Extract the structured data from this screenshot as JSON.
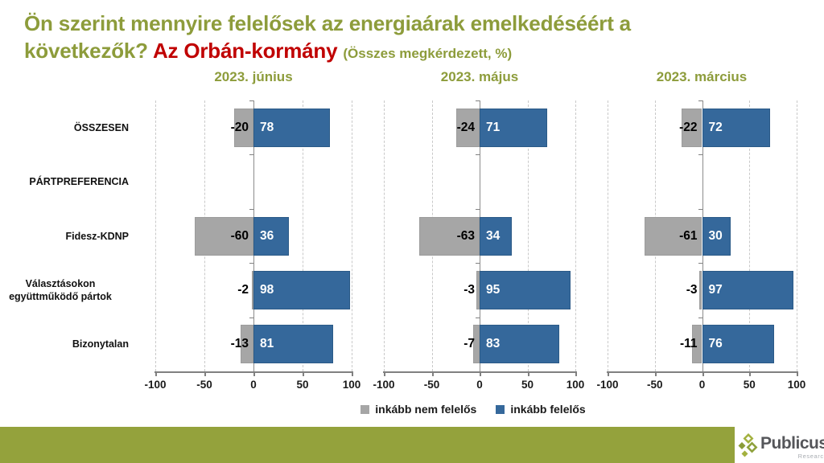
{
  "header": {
    "title_line1": "Ön szerint mennyire felelősek az energiaárak emelkedéséért a",
    "title_line2": "következők?",
    "title_highlight": "Az Orbán-kormány",
    "title_note": "(Összes megkérdezett, %)"
  },
  "chart_data": {
    "type": "bar",
    "orientation": "horizontal_diverging",
    "categories": [
      "ÖSSZESEN",
      "PÁRTPREFERENCIA",
      "Fidesz-KDNP",
      "Választásokon együttműködő pártok",
      "Bizonytalan"
    ],
    "xlim": [
      -100,
      100
    ],
    "x_ticks": [
      -100,
      -50,
      0,
      50,
      100
    ],
    "grid": "dashed-vertical",
    "legend_position": "bottom-center",
    "panels": [
      {
        "title": "2023. június",
        "series": [
          {
            "name": "inkább nem felelős",
            "values": [
              -20,
              null,
              -60,
              -2,
              -13
            ]
          },
          {
            "name": "inkább felelős",
            "values": [
              78,
              null,
              36,
              98,
              81
            ]
          }
        ]
      },
      {
        "title": "2023. május",
        "series": [
          {
            "name": "inkább nem felelős",
            "values": [
              -24,
              null,
              -63,
              -3,
              -7
            ]
          },
          {
            "name": "inkább felelős",
            "values": [
              71,
              null,
              34,
              95,
              83
            ]
          }
        ]
      },
      {
        "title": "2023. március",
        "series": [
          {
            "name": "inkább nem felelős",
            "values": [
              -22,
              null,
              -61,
              -3,
              -11
            ]
          },
          {
            "name": "inkább felelős",
            "values": [
              72,
              null,
              30,
              97,
              76
            ]
          }
        ]
      }
    ],
    "legend": [
      {
        "label": "inkább nem felelős",
        "color": "#A6A6A6"
      },
      {
        "label": "inkább felelős",
        "color": "#35689B"
      }
    ],
    "colors": {
      "bar_negative": "#A6A6A6",
      "bar_positive": "#35689B",
      "axis": "#808080",
      "gridline": "#C9C9C9",
      "accent_green": "#8D9C3B",
      "accent_red": "#C00000"
    }
  },
  "footer": {
    "brand": "Publicus",
    "brand_sub": "Research",
    "bar_color": "#94A23C"
  }
}
